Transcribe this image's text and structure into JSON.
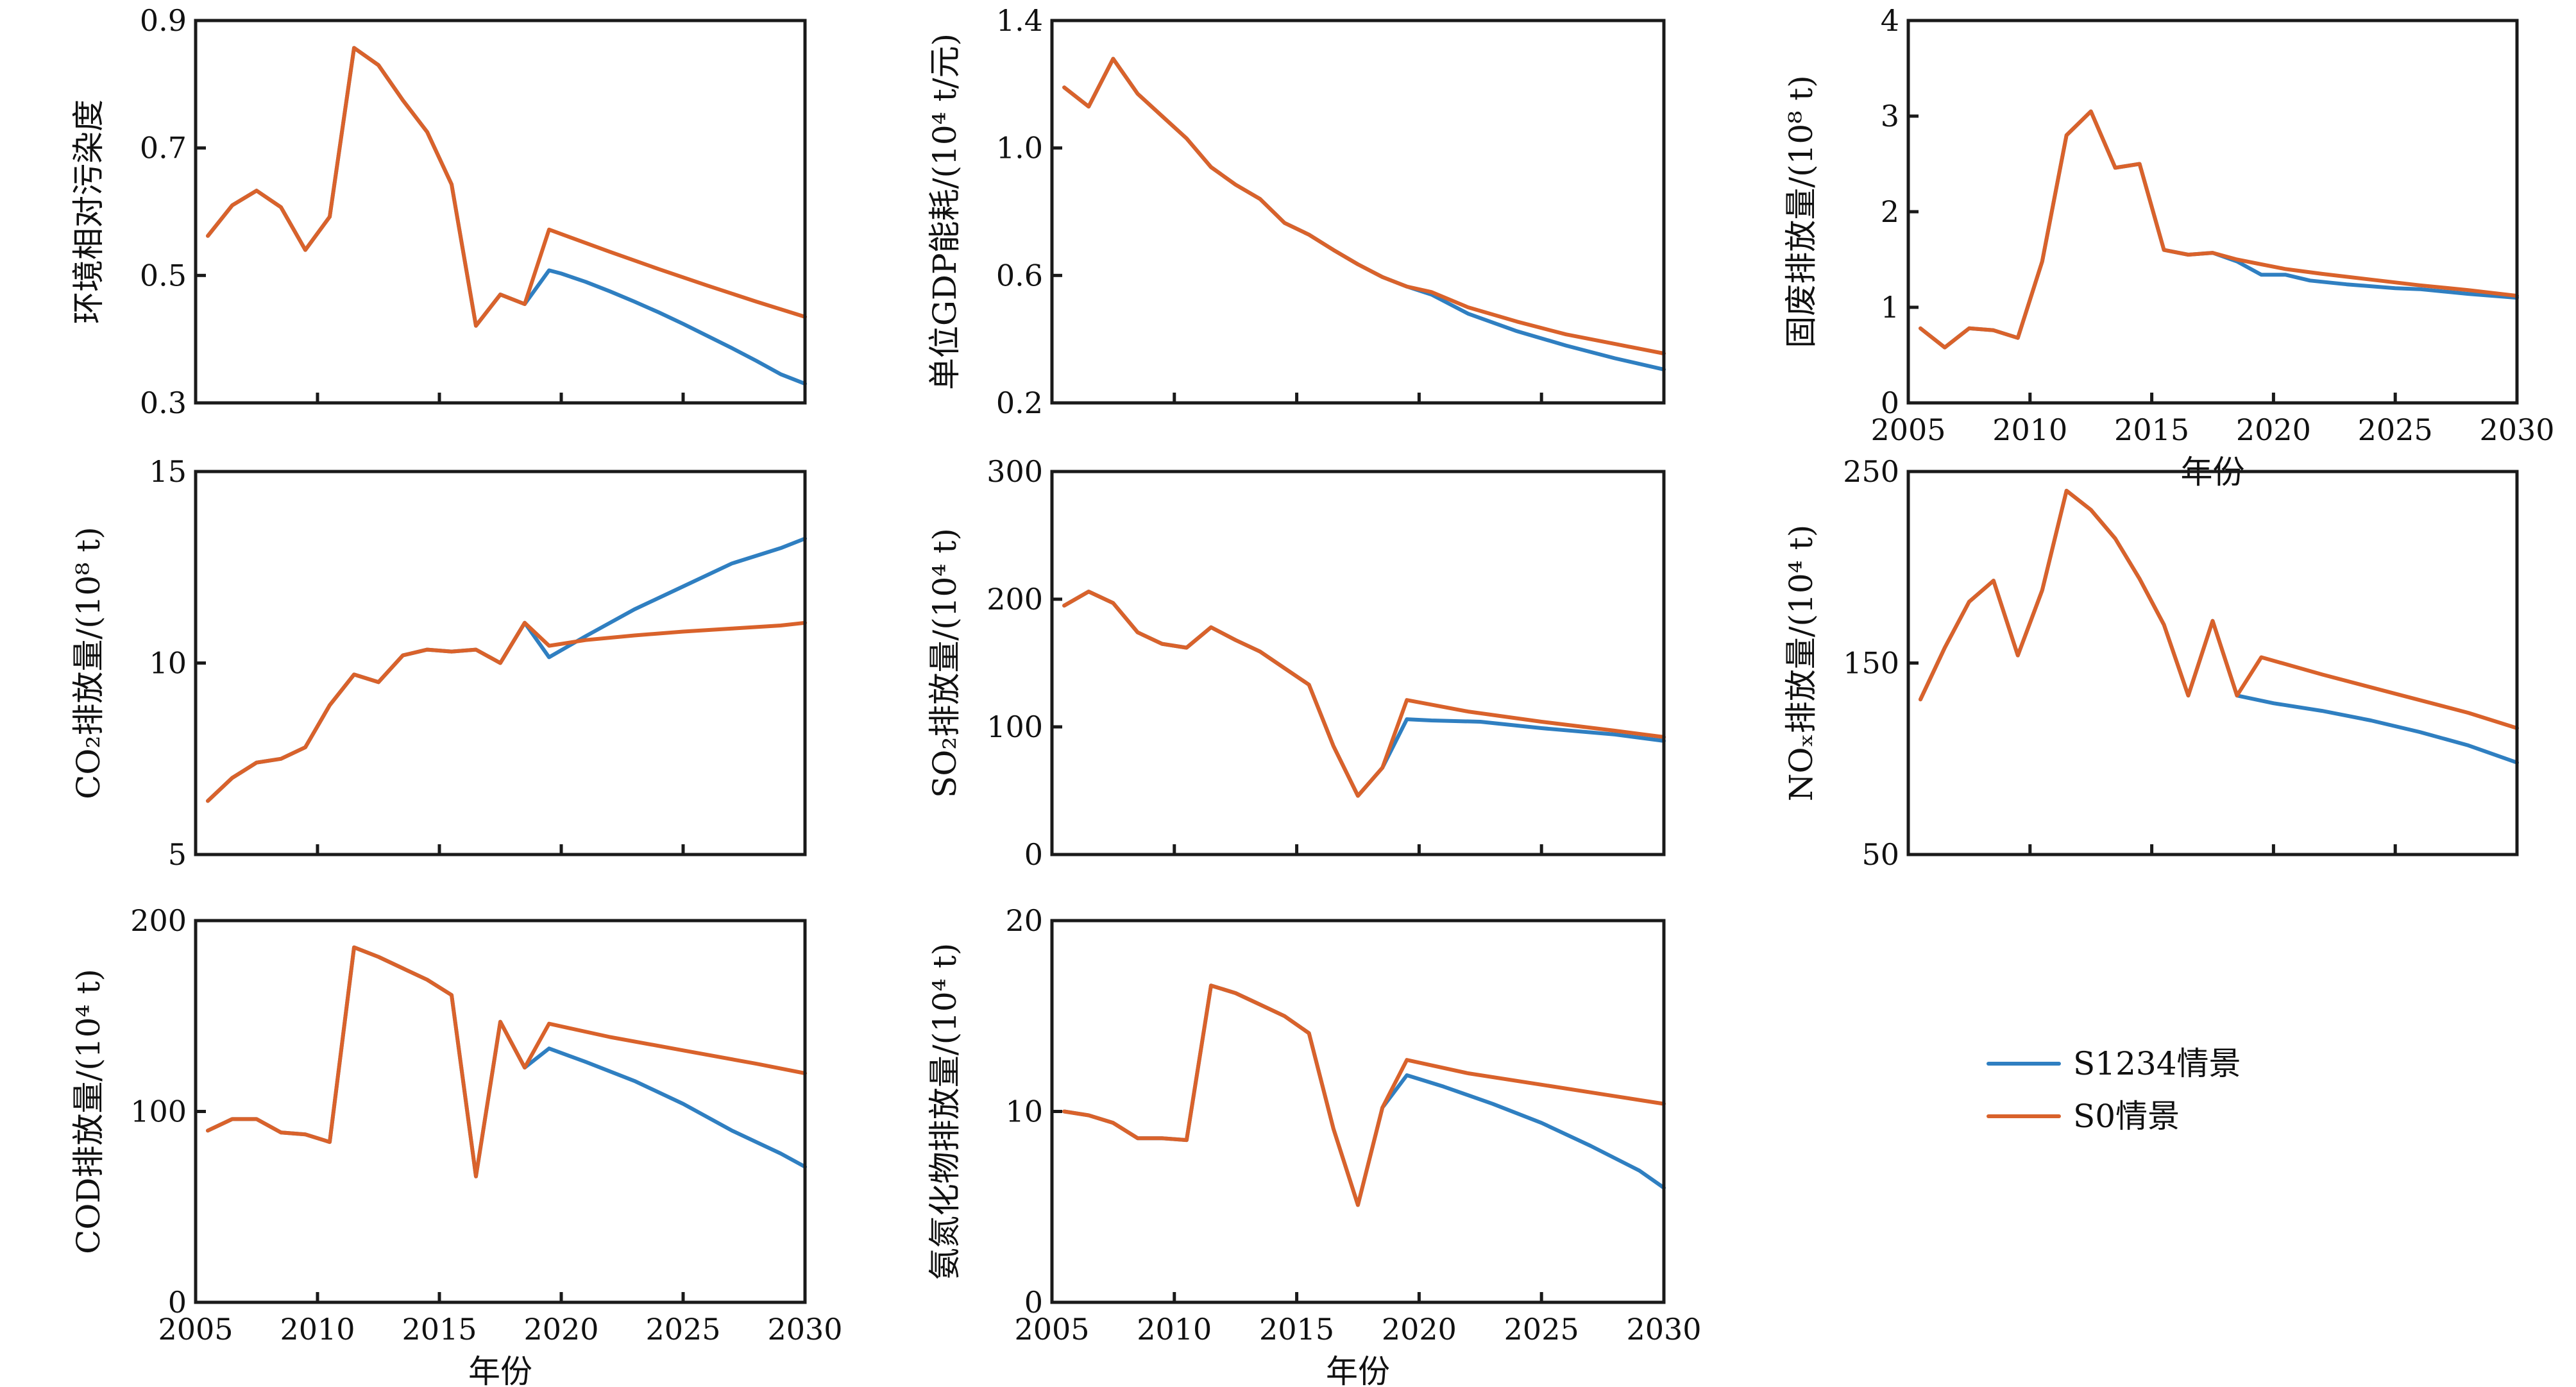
{
  "colors": {
    "S1234": "#2f7fc1",
    "S0": "#d9622b"
  },
  "legend": [
    {
      "key": "S1234",
      "label": "S1234情景"
    },
    {
      "key": "S0",
      "label": "S0情景"
    }
  ],
  "chart_data": [
    {
      "type": "line",
      "ylabel": "环境相对污染度",
      "xlabel": "",
      "xlim": [
        2005,
        2030
      ],
      "ylim": [
        0.3,
        0.9
      ],
      "xticks": [
        "2005",
        "2010",
        "2015",
        "2020",
        "2025",
        "2030"
      ],
      "yticks": [
        "0.3",
        "0.5",
        "0.7",
        "0.9"
      ],
      "show_xticklabels": false,
      "series": [
        {
          "key": "S1234",
          "name": "S1234情景",
          "x": [
            2005.5,
            2006.5,
            2007.5,
            2008.5,
            2009.5,
            2010.5,
            2011.5,
            2012.5,
            2013.5,
            2014.5,
            2015.5,
            2016.5,
            2017.5,
            2018.5,
            2019.5,
            2020,
            2021,
            2022,
            2023,
            2024,
            2025,
            2026,
            2027,
            2028,
            2029,
            2030
          ],
          "y": [
            0.562,
            0.61,
            0.633,
            0.607,
            0.54,
            0.592,
            0.857,
            0.83,
            0.775,
            0.725,
            0.643,
            0.421,
            0.47,
            0.455,
            0.508,
            0.503,
            0.49,
            0.475,
            0.459,
            0.442,
            0.424,
            0.405,
            0.386,
            0.366,
            0.345,
            0.33
          ]
        },
        {
          "key": "S0",
          "name": "S0情景",
          "x": [
            2005.5,
            2006.5,
            2007.5,
            2008.5,
            2009.5,
            2010.5,
            2011.5,
            2012.5,
            2013.5,
            2014.5,
            2015.5,
            2016.5,
            2017.5,
            2018.5,
            2019.5,
            2020,
            2022,
            2024,
            2026,
            2028,
            2030
          ],
          "y": [
            0.562,
            0.61,
            0.633,
            0.607,
            0.54,
            0.592,
            0.857,
            0.83,
            0.775,
            0.725,
            0.643,
            0.421,
            0.47,
            0.455,
            0.572,
            0.565,
            0.537,
            0.51,
            0.484,
            0.459,
            0.435
          ]
        }
      ]
    },
    {
      "type": "line",
      "ylabel": "单位GDP能耗/(10⁴ t/元)",
      "xlabel": "",
      "xlim": [
        2005,
        2030
      ],
      "ylim": [
        0.2,
        1.4
      ],
      "xticks": [
        "2005",
        "2010",
        "2015",
        "2020",
        "2025",
        "2030"
      ],
      "yticks": [
        "0.2",
        "0.6",
        "1.0",
        "1.4"
      ],
      "show_xticklabels": false,
      "series": [
        {
          "key": "S1234",
          "name": "S1234情景",
          "x": [
            2005.5,
            2006.5,
            2007.5,
            2008.5,
            2009.5,
            2010.5,
            2011.5,
            2012.5,
            2013.5,
            2014.5,
            2015.5,
            2016.5,
            2017.5,
            2018.5,
            2019.5,
            2020.5,
            2022,
            2024,
            2026,
            2028,
            2030
          ],
          "y": [
            1.19,
            1.13,
            1.28,
            1.17,
            1.1,
            1.03,
            0.94,
            0.885,
            0.84,
            0.765,
            0.728,
            0.68,
            0.635,
            0.595,
            0.565,
            0.54,
            0.48,
            0.425,
            0.38,
            0.34,
            0.305
          ]
        },
        {
          "key": "S0",
          "name": "S0情景",
          "x": [
            2005.5,
            2006.5,
            2007.5,
            2008.5,
            2009.5,
            2010.5,
            2011.5,
            2012.5,
            2013.5,
            2014.5,
            2015.5,
            2016.5,
            2017.5,
            2018.5,
            2019.5,
            2020.5,
            2022,
            2024,
            2026,
            2028,
            2030
          ],
          "y": [
            1.19,
            1.13,
            1.28,
            1.17,
            1.1,
            1.03,
            0.94,
            0.885,
            0.84,
            0.765,
            0.728,
            0.68,
            0.635,
            0.595,
            0.565,
            0.548,
            0.5,
            0.455,
            0.415,
            0.385,
            0.355
          ]
        }
      ]
    },
    {
      "type": "line",
      "ylabel": "固废排放量/(10⁸ t)",
      "xlabel": "年份",
      "xlim": [
        2005,
        2030
      ],
      "ylim": [
        0,
        4
      ],
      "xticks": [
        "2005",
        "2010",
        "2015",
        "2020",
        "2025",
        "2030"
      ],
      "yticks": [
        "0",
        "1",
        "2",
        "3",
        "4"
      ],
      "show_xticklabels": true,
      "series": [
        {
          "key": "S1234",
          "name": "S1234情景",
          "x": [
            2005.5,
            2006.5,
            2007.5,
            2008.5,
            2009.5,
            2010.5,
            2011.5,
            2012.5,
            2013.5,
            2014.5,
            2015.5,
            2016.5,
            2017.5,
            2018.5,
            2019.5,
            2020.5,
            2021.5,
            2023,
            2025,
            2026,
            2028,
            2030
          ],
          "y": [
            0.78,
            0.58,
            0.78,
            0.76,
            0.68,
            1.48,
            2.8,
            3.05,
            2.46,
            2.5,
            1.6,
            1.55,
            1.57,
            1.48,
            1.34,
            1.34,
            1.28,
            1.24,
            1.2,
            1.19,
            1.14,
            1.1
          ]
        },
        {
          "key": "S0",
          "name": "S0情景",
          "x": [
            2005.5,
            2006.5,
            2007.5,
            2008.5,
            2009.5,
            2010.5,
            2011.5,
            2012.5,
            2013.5,
            2014.5,
            2015.5,
            2016.5,
            2017.5,
            2018.5,
            2019.5,
            2020.5,
            2022,
            2024,
            2026,
            2028,
            2030
          ],
          "y": [
            0.78,
            0.58,
            0.78,
            0.76,
            0.68,
            1.48,
            2.8,
            3.05,
            2.46,
            2.5,
            1.6,
            1.55,
            1.57,
            1.5,
            1.45,
            1.4,
            1.35,
            1.29,
            1.23,
            1.18,
            1.12
          ]
        }
      ]
    },
    {
      "type": "line",
      "ylabel": "CO₂排放量/(10⁸ t)",
      "xlabel": "",
      "xlim": [
        2005,
        2030
      ],
      "ylim": [
        5,
        15
      ],
      "xticks": [
        "2005",
        "2010",
        "2015",
        "2020",
        "2025",
        "2030"
      ],
      "yticks": [
        "5",
        "10",
        "15"
      ],
      "show_xticklabels": false,
      "series": [
        {
          "key": "S1234",
          "name": "S1234情景",
          "x": [
            2005.5,
            2006.5,
            2007.5,
            2008.5,
            2009.5,
            2010.5,
            2011.5,
            2012.5,
            2013.5,
            2014.5,
            2015.5,
            2016.5,
            2017.5,
            2018.5,
            2019.5,
            2021,
            2023,
            2025,
            2027,
            2029,
            2030
          ],
          "y": [
            6.4,
            7.0,
            7.4,
            7.5,
            7.8,
            8.9,
            9.7,
            9.5,
            10.2,
            10.35,
            10.3,
            10.35,
            10.0,
            11.05,
            10.15,
            10.7,
            11.4,
            12.0,
            12.6,
            13.0,
            13.25
          ]
        },
        {
          "key": "S0",
          "name": "S0情景",
          "x": [
            2005.5,
            2006.5,
            2007.5,
            2008.5,
            2009.5,
            2010.5,
            2011.5,
            2012.5,
            2013.5,
            2014.5,
            2015.5,
            2016.5,
            2017.5,
            2018.5,
            2019.5,
            2021,
            2023,
            2025,
            2027,
            2029,
            2030
          ],
          "y": [
            6.4,
            7.0,
            7.4,
            7.5,
            7.8,
            8.9,
            9.7,
            9.5,
            10.2,
            10.35,
            10.3,
            10.35,
            10.0,
            11.05,
            10.45,
            10.6,
            10.72,
            10.82,
            10.9,
            10.98,
            11.05
          ]
        }
      ]
    },
    {
      "type": "line",
      "ylabel": "SO₂排放量/(10⁴ t)",
      "xlabel": "",
      "xlim": [
        2005,
        2030
      ],
      "ylim": [
        0,
        300
      ],
      "xticks": [
        "2005",
        "2010",
        "2015",
        "2020",
        "2025",
        "2030"
      ],
      "yticks": [
        "0",
        "100",
        "200",
        "300"
      ],
      "show_xticklabels": false,
      "series": [
        {
          "key": "S1234",
          "name": "S1234情景",
          "x": [
            2005.5,
            2006.5,
            2007.5,
            2008.5,
            2009.5,
            2010.5,
            2011.5,
            2012.5,
            2013.5,
            2014.5,
            2015.5,
            2016.5,
            2017.5,
            2018.5,
            2019.5,
            2020.5,
            2022.5,
            2025,
            2028,
            2030
          ],
          "y": [
            195,
            206,
            197,
            174,
            165,
            162,
            178,
            168,
            159,
            146,
            133,
            85,
            46,
            68,
            106,
            105,
            104,
            99,
            94,
            89
          ]
        },
        {
          "key": "S0",
          "name": "S0情景",
          "x": [
            2005.5,
            2006.5,
            2007.5,
            2008.5,
            2009.5,
            2010.5,
            2011.5,
            2012.5,
            2013.5,
            2014.5,
            2015.5,
            2016.5,
            2017.5,
            2018.5,
            2019.5,
            2022,
            2025,
            2028,
            2030
          ],
          "y": [
            195,
            206,
            197,
            174,
            165,
            162,
            178,
            168,
            159,
            146,
            133,
            85,
            46,
            68,
            121,
            112,
            104,
            97,
            92
          ]
        }
      ]
    },
    {
      "type": "line",
      "ylabel": "NOₓ排放量/(10⁴ t)",
      "xlabel": "",
      "xlim": [
        2005,
        2030
      ],
      "ylim": [
        50,
        250
      ],
      "xticks": [
        "2005",
        "2010",
        "2015",
        "2020",
        "2025",
        "2030"
      ],
      "yticks": [
        "50",
        "150",
        "250"
      ],
      "show_xticklabels": false,
      "series": [
        {
          "key": "S1234",
          "name": "S1234情景",
          "x": [
            2005.5,
            2006.5,
            2007.5,
            2008.5,
            2009.5,
            2010.5,
            2011.5,
            2012.5,
            2013.5,
            2014.5,
            2015.5,
            2016.5,
            2017.5,
            2018.5,
            2020,
            2022,
            2024,
            2026,
            2028,
            2030
          ],
          "y": [
            131,
            158,
            182,
            193,
            154,
            188,
            240,
            230,
            215,
            194,
            170,
            133,
            172,
            133,
            129,
            125,
            120,
            114,
            107,
            98
          ]
        },
        {
          "key": "S0",
          "name": "S0情景",
          "x": [
            2005.5,
            2006.5,
            2007.5,
            2008.5,
            2009.5,
            2010.5,
            2011.5,
            2012.5,
            2013.5,
            2014.5,
            2015.5,
            2016.5,
            2017.5,
            2018.5,
            2019.5,
            2022,
            2025,
            2028,
            2030
          ],
          "y": [
            131,
            158,
            182,
            193,
            154,
            188,
            240,
            230,
            215,
            194,
            170,
            133,
            172,
            133,
            153,
            144,
            134,
            124,
            116
          ]
        }
      ]
    },
    {
      "type": "line",
      "ylabel": "COD排放量/(10⁴ t)",
      "xlabel": "年份",
      "xlim": [
        2005,
        2030
      ],
      "ylim": [
        0,
        200
      ],
      "xticks": [
        "2005",
        "2010",
        "2015",
        "2020",
        "2025",
        "2030"
      ],
      "yticks": [
        "0",
        "100",
        "200"
      ],
      "show_xticklabels": true,
      "series": [
        {
          "key": "S1234",
          "name": "S1234情景",
          "x": [
            2005.5,
            2006.5,
            2007.5,
            2008.5,
            2009.5,
            2010.5,
            2011.5,
            2012.5,
            2013.5,
            2014.5,
            2015.5,
            2016.5,
            2017.5,
            2018.5,
            2019.5,
            2021,
            2023,
            2025,
            2027,
            2029,
            2030
          ],
          "y": [
            90,
            96,
            96,
            89,
            88,
            84,
            186,
            181,
            175,
            169,
            161,
            66,
            147,
            123,
            133,
            126,
            116,
            104,
            90,
            78,
            71
          ]
        },
        {
          "key": "S0",
          "name": "S0情景",
          "x": [
            2005.5,
            2006.5,
            2007.5,
            2008.5,
            2009.5,
            2010.5,
            2011.5,
            2012.5,
            2013.5,
            2014.5,
            2015.5,
            2016.5,
            2017.5,
            2018.5,
            2019.5,
            2022,
            2025,
            2028,
            2030
          ],
          "y": [
            90,
            96,
            96,
            89,
            88,
            84,
            186,
            181,
            175,
            169,
            161,
            66,
            147,
            123,
            146,
            139,
            132,
            125,
            120
          ]
        }
      ]
    },
    {
      "type": "line",
      "ylabel": "氨氮化物排放量/(10⁴ t)",
      "xlabel": "年份",
      "xlim": [
        2005,
        2030
      ],
      "ylim": [
        0,
        20
      ],
      "xticks": [
        "2005",
        "2010",
        "2015",
        "2020",
        "2025",
        "2030"
      ],
      "yticks": [
        "0",
        "10",
        "20"
      ],
      "show_xticklabels": true,
      "series": [
        {
          "key": "S1234",
          "name": "S1234情景",
          "x": [
            2005.5,
            2006.5,
            2007.5,
            2008.5,
            2009.5,
            2010.5,
            2011.5,
            2012.5,
            2013.5,
            2014.5,
            2015.5,
            2016.5,
            2017.5,
            2018.5,
            2019.5,
            2021,
            2023,
            2025,
            2027,
            2029,
            2030
          ],
          "y": [
            10.0,
            9.8,
            9.4,
            8.6,
            8.6,
            8.5,
            16.6,
            16.2,
            15.6,
            15.0,
            14.1,
            9.1,
            5.1,
            10.2,
            11.9,
            11.3,
            10.4,
            9.4,
            8.2,
            6.9,
            6.0
          ]
        },
        {
          "key": "S0",
          "name": "S0情景",
          "x": [
            2005.5,
            2006.5,
            2007.5,
            2008.5,
            2009.5,
            2010.5,
            2011.5,
            2012.5,
            2013.5,
            2014.5,
            2015.5,
            2016.5,
            2017.5,
            2018.5,
            2019.5,
            2022,
            2025,
            2028,
            2030
          ],
          "y": [
            10.0,
            9.8,
            9.4,
            8.6,
            8.6,
            8.5,
            16.6,
            16.2,
            15.6,
            15.0,
            14.1,
            9.1,
            5.1,
            10.2,
            12.7,
            12.0,
            11.4,
            10.8,
            10.4
          ]
        }
      ]
    }
  ]
}
